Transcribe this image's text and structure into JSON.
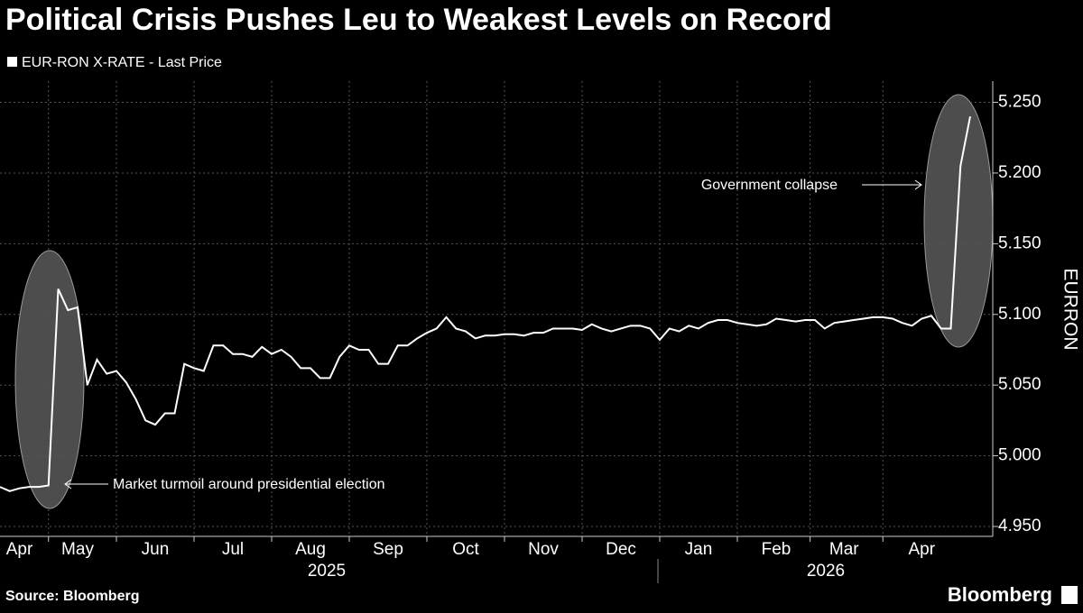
{
  "chart_data": {
    "type": "line",
    "title": "Political Crisis Pushes Leu to Weakest Levels on Record",
    "y_axis_label": "EURRON",
    "source": "Source: Bloomberg",
    "brand": "Bloomberg",
    "year_labels": [
      "2025",
      "2026"
    ],
    "annotations": [
      "Market turmoil around presidential election",
      "Government collapse"
    ],
    "categories": [
      null,
      null,
      "Apr",
      null,
      null,
      null,
      null,
      null,
      "May",
      null,
      null,
      null,
      null,
      null,
      null,
      null,
      "Jun",
      null,
      null,
      null,
      null,
      null,
      null,
      null,
      "Jul",
      null,
      null,
      null,
      null,
      null,
      null,
      null,
      "Aug",
      null,
      null,
      null,
      null,
      null,
      null,
      null,
      "Sep",
      null,
      null,
      null,
      null,
      null,
      null,
      null,
      "Oct",
      null,
      null,
      null,
      null,
      null,
      null,
      null,
      "Nov",
      null,
      null,
      null,
      null,
      null,
      null,
      null,
      "Dec",
      null,
      null,
      null,
      null,
      null,
      null,
      null,
      "Jan",
      null,
      null,
      null,
      null,
      null,
      null,
      null,
      "Feb",
      null,
      null,
      null,
      null,
      null,
      null,
      "Mar",
      null,
      null,
      null,
      null,
      null,
      null,
      null,
      "Apr",
      null,
      null,
      null,
      null,
      null
    ],
    "series": [
      {
        "name": "EUR-RON X-RATE - Last Price",
        "color": "#ffffff",
        "values": [
          4.978,
          4.975,
          4.977,
          4.978,
          4.978,
          4.979,
          5.118,
          5.103,
          5.105,
          5.05,
          5.068,
          5.058,
          5.06,
          5.052,
          5.04,
          5.025,
          5.022,
          5.03,
          5.03,
          5.065,
          5.062,
          5.06,
          5.078,
          5.078,
          5.072,
          5.072,
          5.07,
          5.077,
          5.072,
          5.075,
          5.07,
          5.062,
          5.062,
          5.055,
          5.055,
          5.07,
          5.078,
          5.075,
          5.075,
          5.065,
          5.065,
          5.078,
          5.078,
          5.083,
          5.087,
          5.09,
          5.098,
          5.09,
          5.088,
          5.083,
          5.085,
          5.085,
          5.086,
          5.086,
          5.085,
          5.087,
          5.087,
          5.09,
          5.09,
          5.09,
          5.089,
          5.093,
          5.09,
          5.088,
          5.09,
          5.092,
          5.092,
          5.09,
          5.082,
          5.09,
          5.088,
          5.092,
          5.09,
          5.094,
          5.096,
          5.096,
          5.094,
          5.093,
          5.092,
          5.093,
          5.097,
          5.096,
          5.095,
          5.096,
          5.096,
          5.09,
          5.094,
          5.095,
          5.096,
          5.097,
          5.098,
          5.098,
          5.097,
          5.094,
          5.092,
          5.097,
          5.099,
          5.09,
          5.09,
          5.205,
          5.24
        ]
      }
    ],
    "ylim": [
      4.943,
      5.265
    ],
    "yticks": [
      {
        "value": 4.95,
        "label": "4.950"
      },
      {
        "value": 5.0,
        "label": "5.000"
      },
      {
        "value": 5.05,
        "label": "5.050"
      },
      {
        "value": 5.1,
        "label": "5.100"
      },
      {
        "value": 5.15,
        "label": "5.150"
      },
      {
        "value": 5.2,
        "label": "5.200"
      },
      {
        "value": 5.25,
        "label": "5.250"
      }
    ],
    "grid": true
  }
}
